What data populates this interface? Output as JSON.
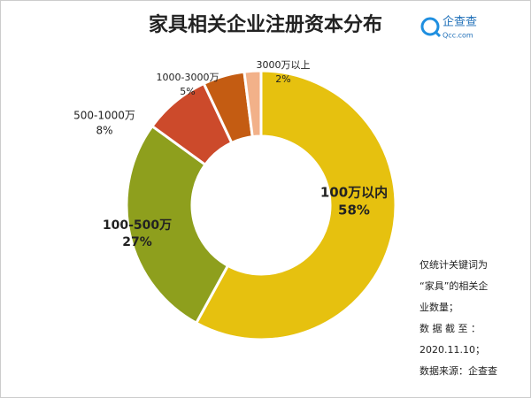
{
  "chart_data": {
    "type": "donut",
    "title": "家具相关企业注册资本分布",
    "categories": [
      "100万以内",
      "100-500万",
      "500-1000万",
      "1000-3000万",
      "3000万以上"
    ],
    "values": [
      58,
      27,
      8,
      5,
      2
    ],
    "value_labels": [
      "58%",
      "27%",
      "8%",
      "5%",
      "2%"
    ],
    "colors": [
      "#e6c10f",
      "#8e9f1d",
      "#cc4a2b",
      "#c45c12",
      "#f2b189"
    ]
  },
  "logo": {
    "name": "企查查",
    "site": "Qcc.com"
  },
  "note": [
    "仅统计关键词为",
    "“家具”的相关企",
    "业数量；",
    "数 据 截 至 ：",
    "2020.11.10；",
    "数据来源：企查查"
  ]
}
